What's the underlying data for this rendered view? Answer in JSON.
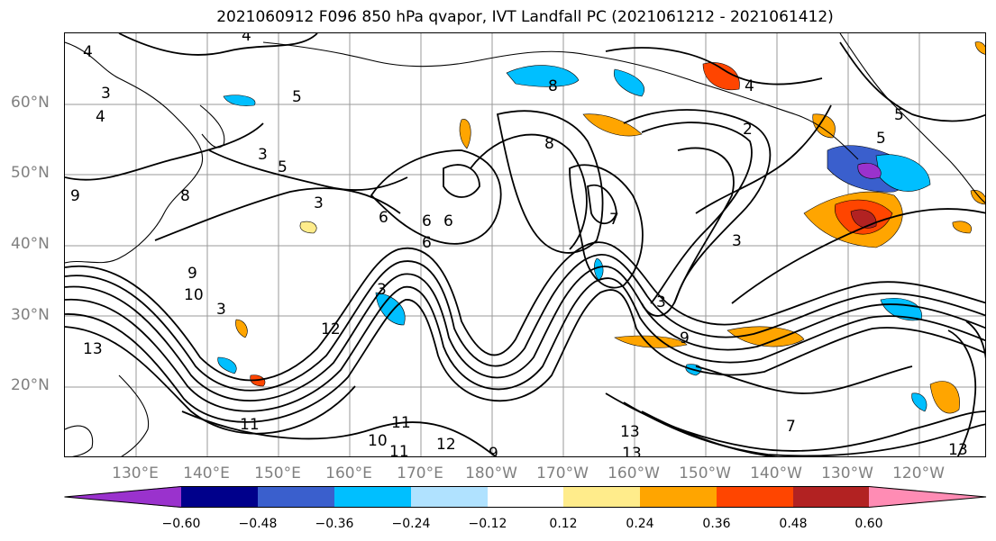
{
  "title": "2021060912 F096 850 hPa qvapor, IVT Landfall PC (2021061212 - 2021061412)",
  "latitude_labels": [
    "60°N",
    "50°N",
    "40°N",
    "30°N",
    "20°N"
  ],
  "longitude_labels": [
    "130°E",
    "140°E",
    "150°E",
    "160°E",
    "170°E",
    "180°W",
    "170°W",
    "160°W",
    "150°W",
    "140°W",
    "130°W",
    "120°W"
  ],
  "contour_labels": [
    "4",
    "4",
    "3",
    "4",
    "5",
    "3",
    "5",
    "3",
    "6",
    "9",
    "8",
    "6",
    "6",
    "8",
    "7",
    "3",
    "12",
    "3",
    "9",
    "13",
    "13",
    "10",
    "11",
    "12",
    "9",
    "13",
    "13",
    "11",
    "11",
    "7",
    "5",
    "5",
    "4",
    "2",
    "8",
    "6",
    "10",
    "9",
    "3",
    "3"
  ],
  "colorbar": {
    "ticks": [
      "−0.60",
      "−0.48",
      "−0.36",
      "−0.24",
      "−0.12",
      "0.12",
      "0.24",
      "0.36",
      "0.48",
      "0.60"
    ],
    "colors": [
      "#9a32cd",
      "#00008b",
      "#3a5fcd",
      "#00bfff",
      "#b0e2ff",
      "#ffffff",
      "#ffec8b",
      "#ffa500",
      "#ff4500",
      "#b22222",
      "#ff8cb4"
    ]
  }
}
